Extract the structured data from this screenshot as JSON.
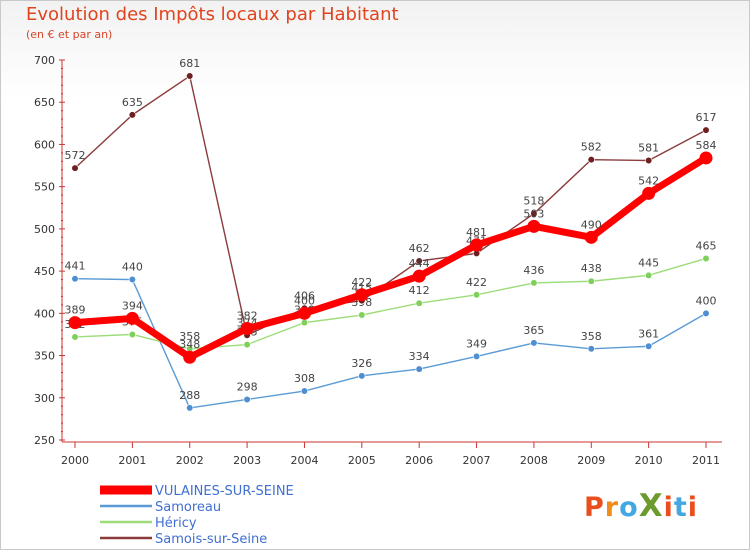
{
  "title": "Evolution des Impôts locaux par Habitant",
  "subtitle": "(en € et par an)",
  "logo": {
    "text": "ProXiti",
    "letters": [
      "P",
      "r",
      "o",
      "X",
      "i",
      "t",
      "i"
    ],
    "colors": [
      "#e94f1e",
      "#f08c1a",
      "#43a7e2",
      "#6d9a2d",
      "#e94f1e",
      "#43a7e2",
      "#e94f1e"
    ]
  },
  "chart_data": {
    "type": "line",
    "title": "Evolution des Impôts locaux par Habitant",
    "subtitle": "(en € et par an)",
    "xlabel": "",
    "ylabel": "",
    "ylim": [
      250,
      700
    ],
    "yticks": [
      250,
      300,
      350,
      400,
      450,
      500,
      550,
      600,
      650,
      700
    ],
    "x": [
      "2000",
      "2001",
      "2002",
      "2003",
      "2004",
      "2005",
      "2006",
      "2007",
      "2008",
      "2009",
      "2010",
      "2011"
    ],
    "grid": false,
    "legend": "bottom-left",
    "series": [
      {
        "name": "Samoreau",
        "color": "#5b9bd5",
        "markerColor": "#4f8fd1",
        "width": 1.4,
        "values": [
          441,
          440,
          288,
          298,
          308,
          326,
          334,
          349,
          365,
          358,
          361,
          400
        ]
      },
      {
        "name": "Héricy",
        "color": "#9edc7a",
        "markerColor": "#7fd05a",
        "width": 1.4,
        "values": [
          372,
          375,
          358,
          363,
          389,
          398,
          412,
          422,
          436,
          438,
          445,
          465
        ]
      },
      {
        "name": "Samois-sur-Seine",
        "color": "#8b3b3b",
        "markerColor": "#6e1f1f",
        "width": 1.4,
        "values": [
          572,
          635,
          681,
          374,
          406,
          415,
          462,
          471,
          518,
          582,
          581,
          617
        ]
      },
      {
        "name": "VULAINES-SUR-SEINE",
        "color": "#ff0000",
        "markerColor": "#ff0000",
        "width": 7,
        "values": [
          389,
          394,
          348,
          382,
          400,
          422,
          444,
          481,
          503,
          490,
          542,
          584
        ]
      }
    ],
    "legend_order": [
      "VULAINES-SUR-SEINE",
      "Samoreau",
      "Héricy",
      "Samois-sur-Seine"
    ]
  }
}
